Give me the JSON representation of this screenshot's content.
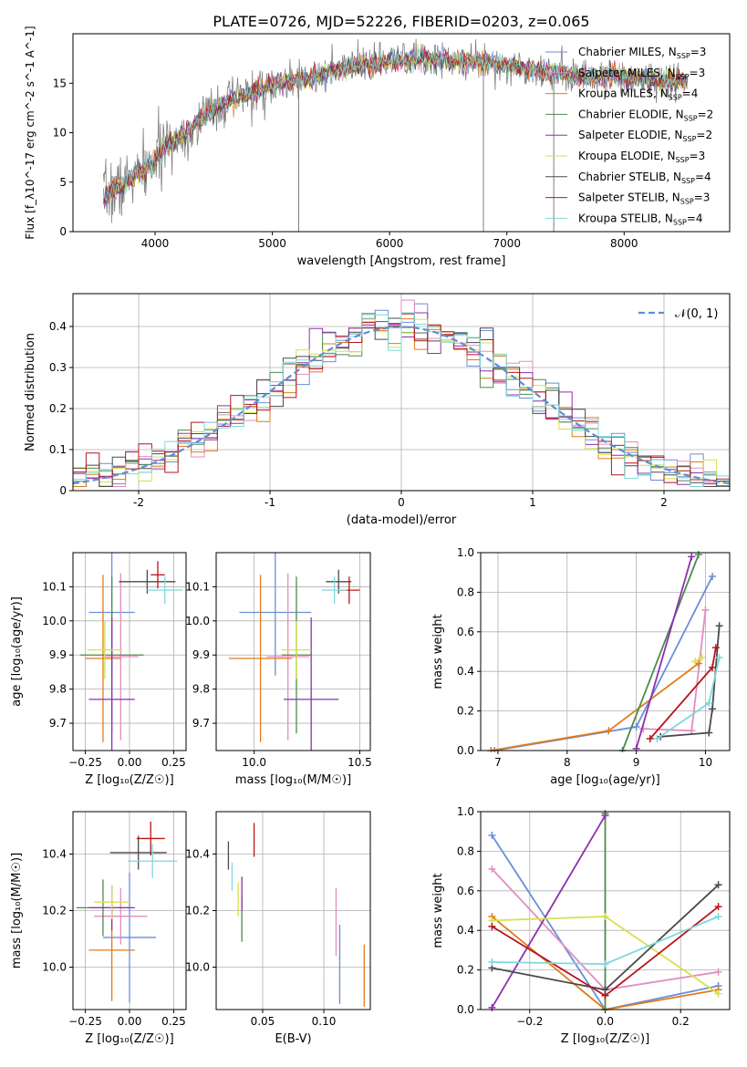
{
  "figure_title": "PLATE=0726, MJD=52226, FIBERID=0203, z=0.065",
  "colors": {
    "Chabrier MILES": "#6a8fd9",
    "Salpeter MILES": "#e38dbf",
    "Kroupa MILES": "#e07b1a",
    "Chabrier ELODIE": "#4e8a4e",
    "Salpeter ELODIE": "#8e2fb0",
    "Kroupa ELODIE": "#d8e04a",
    "Chabrier STELIB": "#4a4a4a",
    "Salpeter STELIB": "#b8141a",
    "Kroupa STELIB": "#7ed8dc",
    "data": "#7f7f7f",
    "gaussian": "#5b8fd6"
  },
  "chart_data": [
    {
      "id": "spectrum",
      "type": "line",
      "xlabel": "wavelength [Angstrom, rest frame]",
      "ylabel": "Flux [f_λ10^-17 erg cm^-2 s^-1 A^-1]",
      "xlim": [
        3300,
        8900
      ],
      "ylim": [
        0,
        20
      ],
      "xticks": [
        4000,
        5000,
        6000,
        7000,
        8000
      ],
      "yticks": [
        0,
        5,
        10,
        15
      ],
      "legend": "top-right",
      "legend_entries": [
        {
          "name": "Chabrier MILES",
          "nssp": "3"
        },
        {
          "name": "Salpeter MILES",
          "nssp": "3"
        },
        {
          "name": "Kroupa MILES",
          "nssp": "4"
        },
        {
          "name": "Chabrier ELODIE",
          "nssp": "2"
        },
        {
          "name": "Salpeter ELODIE",
          "nssp": "2"
        },
        {
          "name": "Kroupa ELODIE",
          "nssp": "3"
        },
        {
          "name": "Chabrier STELIB",
          "nssp": "4"
        },
        {
          "name": "Salpeter STELIB",
          "nssp": "3"
        },
        {
          "name": "Kroupa STELIB",
          "nssp": "4"
        }
      ],
      "continuum": [
        [
          3550,
          3.5
        ],
        [
          3700,
          4.5
        ],
        [
          3850,
          5.8
        ],
        [
          3950,
          6.6
        ],
        [
          4100,
          8.7
        ],
        [
          4300,
          10.3
        ],
        [
          4500,
          12.5
        ],
        [
          4700,
          13.5
        ],
        [
          4900,
          14.3
        ],
        [
          5100,
          15.0
        ],
        [
          5300,
          15.5
        ],
        [
          5500,
          16.2
        ],
        [
          5700,
          16.6
        ],
        [
          5900,
          17.0
        ],
        [
          6100,
          17.3
        ],
        [
          6300,
          17.4
        ],
        [
          6500,
          17.3
        ],
        [
          6700,
          17.2
        ],
        [
          6900,
          17.0
        ],
        [
          7100,
          16.6
        ],
        [
          7300,
          16.2
        ],
        [
          7500,
          16.0
        ],
        [
          7700,
          15.5
        ],
        [
          7900,
          15.7
        ],
        [
          8100,
          15.6
        ],
        [
          8300,
          15.3
        ],
        [
          8500,
          15.2
        ]
      ]
    },
    {
      "id": "histogram",
      "type": "bar",
      "xlabel": "(data-model)/error",
      "ylabel": "Normed distribution",
      "xlim": [
        -2.5,
        2.5
      ],
      "ylim": [
        0,
        0.48
      ],
      "xticks": [
        -2,
        -1,
        0,
        1,
        2
      ],
      "yticks": [
        0.0,
        0.1,
        0.2,
        0.3,
        0.4
      ],
      "grid": true,
      "legend": "top-right",
      "legend_entry": "𝒩(0, 1)",
      "bin_width": 0.1,
      "gaussian": {
        "mean": 0,
        "sigma": 1
      }
    },
    {
      "id": "age_vs_Z",
      "type": "scatter",
      "xlabel": "Z [log₁₀(Z/Z☉)]",
      "ylabel": "age  [log₁₀(age/yr)]",
      "xlim": [
        -0.32,
        0.32
      ],
      "ylim": [
        9.62,
        10.2
      ],
      "xticks": [
        -0.25,
        0.0,
        0.25
      ],
      "xticklabels": [
        "−0.25",
        "0.00",
        "0.25"
      ],
      "yticks": [
        9.7,
        9.8,
        9.9,
        10.0,
        10.1
      ],
      "yticklabels": [
        "9.7",
        "9.8",
        "9.9",
        "10.0",
        "10.1"
      ],
      "grid": true,
      "points": [
        {
          "model": "Chabrier MILES",
          "x": -0.1,
          "xerr": 0.13,
          "y": 10.025,
          "yerr": 0.185
        },
        {
          "model": "Salpeter MILES",
          "x": -0.05,
          "xerr": 0.1,
          "y": 9.895,
          "yerr": 0.245
        },
        {
          "model": "Kroupa MILES",
          "x": -0.15,
          "xerr": 0.1,
          "y": 9.89,
          "yerr": 0.245
        },
        {
          "model": "Chabrier ELODIE",
          "x": -0.1,
          "xerr": 0.18,
          "y": 9.9,
          "yerr": 0.23
        },
        {
          "model": "Salpeter ELODIE",
          "x": -0.1,
          "xerr": 0.13,
          "y": 9.77,
          "yerr": 0.24
        },
        {
          "model": "Kroupa ELODIE",
          "x": -0.14,
          "xerr": 0.1,
          "y": 9.915,
          "yerr": 0.085
        },
        {
          "model": "Chabrier STELIB",
          "x": 0.1,
          "xerr": 0.16,
          "y": 10.115,
          "yerr": 0.035
        },
        {
          "model": "Salpeter STELIB",
          "x": 0.16,
          "xerr": 0.04,
          "y": 10.135,
          "yerr": 0.04
        },
        {
          "model": "Kroupa STELIB",
          "x": 0.2,
          "xerr": 0.1,
          "y": 10.09,
          "yerr": 0.04
        }
      ]
    },
    {
      "id": "age_vs_mass",
      "type": "scatter",
      "xlabel": "mass [log₁₀(M/M☉)]",
      "ylabel": "",
      "xlim": [
        9.82,
        10.55
      ],
      "ylim": [
        9.62,
        10.2
      ],
      "xticks": [
        10.0,
        10.5
      ],
      "xticklabels": [
        "10.0",
        "10.5"
      ],
      "yticks": [
        9.7,
        9.8,
        9.9,
        10.0,
        10.1
      ],
      "yticklabels": [
        "9.7",
        "9.8",
        "9.9",
        "10.0",
        "10.1"
      ],
      "grid": true,
      "points": [
        {
          "model": "Chabrier MILES",
          "x": 10.1,
          "xerr": 0.17,
          "y": 10.025,
          "yerr": 0.185
        },
        {
          "model": "Salpeter MILES",
          "x": 10.16,
          "xerr": 0.1,
          "y": 9.895,
          "yerr": 0.245
        },
        {
          "model": "Kroupa MILES",
          "x": 10.03,
          "xerr": 0.15,
          "y": 9.89,
          "yerr": 0.245
        },
        {
          "model": "Chabrier ELODIE",
          "x": 10.2,
          "xerr": 0.07,
          "y": 9.9,
          "yerr": 0.23
        },
        {
          "model": "Salpeter ELODIE",
          "x": 10.27,
          "xerr": 0.13,
          "y": 9.77,
          "yerr": 0.24
        },
        {
          "model": "Kroupa ELODIE",
          "x": 10.2,
          "xerr": 0.07,
          "y": 9.915,
          "yerr": 0.085
        },
        {
          "model": "Chabrier STELIB",
          "x": 10.4,
          "xerr": 0.06,
          "y": 10.115,
          "yerr": 0.035
        },
        {
          "model": "Salpeter STELIB",
          "x": 10.45,
          "xerr": 0.05,
          "y": 10.09,
          "yerr": 0.04
        },
        {
          "model": "Kroupa STELIB",
          "x": 10.38,
          "xerr": 0.06,
          "y": 10.09,
          "yerr": 0.04
        }
      ]
    },
    {
      "id": "weight_vs_age",
      "type": "line",
      "xlabel": "age  [log₁₀(age/yr)]",
      "ylabel": "mass weight",
      "xlim": [
        6.75,
        10.35
      ],
      "ylim": [
        0,
        1.0
      ],
      "xticks": [
        7,
        8,
        9,
        10
      ],
      "xticklabels": [
        "7",
        "8",
        "9",
        "10"
      ],
      "yticks": [
        0.0,
        0.2,
        0.4,
        0.6,
        0.8,
        1.0
      ],
      "yticklabels": [
        "0.0",
        "0.2",
        "0.4",
        "0.6",
        "0.8",
        "1.0"
      ],
      "grid": true,
      "series": [
        {
          "model": "Chabrier MILES",
          "x": [
            6.95,
            9.0,
            10.1
          ],
          "y": [
            0.0,
            0.12,
            0.88
          ]
        },
        {
          "model": "Salpeter MILES",
          "x": [
            9.1,
            9.8,
            10.0
          ],
          "y": [
            0.11,
            0.1,
            0.71
          ]
        },
        {
          "model": "Kroupa MILES",
          "x": [
            6.9,
            8.6,
            9.9
          ],
          "y": [
            0.0,
            0.1,
            0.44
          ]
        },
        {
          "model": "Chabrier ELODIE",
          "x": [
            8.8,
            9.9
          ],
          "y": [
            0.0,
            0.99
          ]
        },
        {
          "model": "Salpeter ELODIE",
          "x": [
            9.0,
            9.8
          ],
          "y": [
            0.01,
            0.98
          ]
        },
        {
          "model": "Kroupa ELODIE",
          "x": [
            9.85,
            9.95
          ],
          "y": [
            0.45,
            0.47
          ]
        },
        {
          "model": "Chabrier STELIB",
          "x": [
            9.35,
            10.05,
            10.1,
            10.2
          ],
          "y": [
            0.07,
            0.09,
            0.21,
            0.63
          ]
        },
        {
          "model": "Salpeter STELIB",
          "x": [
            9.2,
            10.1,
            10.15
          ],
          "y": [
            0.06,
            0.42,
            0.52
          ]
        },
        {
          "model": "Kroupa STELIB",
          "x": [
            9.3,
            10.05,
            10.2
          ],
          "y": [
            0.06,
            0.24,
            0.47
          ]
        }
      ]
    },
    {
      "id": "mass_vs_Z",
      "type": "scatter",
      "xlabel": "Z [log₁₀(Z/Z☉)]",
      "ylabel": "mass [log₁₀(M/M☉)]",
      "xlim": [
        -0.32,
        0.32
      ],
      "ylim": [
        9.85,
        10.55
      ],
      "xticks": [
        -0.25,
        0.0,
        0.25
      ],
      "xticklabels": [
        "−0.25",
        "0.00",
        "0.25"
      ],
      "yticks": [
        10.0,
        10.2,
        10.4
      ],
      "yticklabels": [
        "10.0",
        "10.2",
        "10.4"
      ],
      "grid": true,
      "points": [
        {
          "model": "Chabrier MILES",
          "x": 0.0,
          "xerr": 0.15,
          "y": 10.105,
          "yerr": 0.23
        },
        {
          "model": "Salpeter MILES",
          "x": -0.05,
          "xerr": 0.15,
          "y": 10.18,
          "yerr": 0.1
        },
        {
          "model": "Kroupa MILES",
          "x": -0.1,
          "xerr": 0.13,
          "y": 10.06,
          "yerr": 0.18
        },
        {
          "model": "Chabrier ELODIE",
          "x": -0.15,
          "xerr": 0.15,
          "y": 10.21,
          "yerr": 0.1
        },
        {
          "model": "Salpeter ELODIE",
          "x": -0.1,
          "xerr": 0.13,
          "y": 10.21,
          "yerr": 0.08
        },
        {
          "model": "Kroupa ELODIE",
          "x": -0.1,
          "xerr": 0.1,
          "y": 10.23,
          "yerr": 0.06
        },
        {
          "model": "Chabrier STELIB",
          "x": 0.05,
          "xerr": 0.16,
          "y": 10.405,
          "yerr": 0.06
        },
        {
          "model": "Salpeter STELIB",
          "x": 0.12,
          "xerr": 0.08,
          "y": 10.455,
          "yerr": 0.06
        },
        {
          "model": "Kroupa STELIB",
          "x": 0.13,
          "xerr": 0.14,
          "y": 10.375,
          "yerr": 0.06
        }
      ]
    },
    {
      "id": "mass_vs_ebv",
      "type": "scatter",
      "xlabel": "E(B-V)",
      "ylabel": "",
      "xlim": [
        0.012,
        0.138
      ],
      "ylim": [
        9.85,
        10.55
      ],
      "xticks": [
        0.05,
        0.1
      ],
      "xticklabels": [
        "0.05",
        "0.10"
      ],
      "yticks": [
        10.0,
        10.2,
        10.4
      ],
      "yticklabels": [
        "10.0",
        "10.2",
        "10.4"
      ],
      "grid": true,
      "points": [
        {
          "model": "Chabrier MILES",
          "x": 0.113,
          "xerr": 0,
          "y": 10.01,
          "yerr": 0.14
        },
        {
          "model": "Salpeter MILES",
          "x": 0.11,
          "xerr": 0,
          "y": 10.16,
          "yerr": 0.12
        },
        {
          "model": "Kroupa MILES",
          "x": 0.133,
          "xerr": 0,
          "y": 9.97,
          "yerr": 0.11
        },
        {
          "model": "Chabrier ELODIE",
          "x": 0.033,
          "xerr": 0,
          "y": 10.17,
          "yerr": 0.08
        },
        {
          "model": "Salpeter ELODIE",
          "x": 0.033,
          "xerr": 0,
          "y": 10.26,
          "yerr": 0.06
        },
        {
          "model": "Kroupa ELODIE",
          "x": 0.03,
          "xerr": 0,
          "y": 10.24,
          "yerr": 0.06
        },
        {
          "model": "Chabrier STELIB",
          "x": 0.022,
          "xerr": 0,
          "y": 10.395,
          "yerr": 0.05
        },
        {
          "model": "Salpeter STELIB",
          "x": 0.043,
          "xerr": 0,
          "y": 10.45,
          "yerr": 0.06
        },
        {
          "model": "Kroupa STELIB",
          "x": 0.025,
          "xerr": 0,
          "y": 10.32,
          "yerr": 0.05
        }
      ]
    },
    {
      "id": "weight_vs_Z",
      "type": "line",
      "xlabel": "Z [log₁₀(Z/Z☉)]",
      "ylabel": "mass weight",
      "xlim": [
        -0.33,
        0.33
      ],
      "ylim": [
        0,
        1.0
      ],
      "xticks": [
        -0.2,
        0.0,
        0.2
      ],
      "xticklabels": [
        "−0.2",
        "0.0",
        "0.2"
      ],
      "yticks": [
        0.0,
        0.2,
        0.4,
        0.6,
        0.8,
        1.0
      ],
      "yticklabels": [
        "0.0",
        "0.2",
        "0.4",
        "0.6",
        "0.8",
        "1.0"
      ],
      "grid": true,
      "series": [
        {
          "model": "Chabrier MILES",
          "x": [
            -0.3,
            0.0,
            0.3
          ],
          "y": [
            0.88,
            0.0,
            0.12
          ]
        },
        {
          "model": "Salpeter MILES",
          "x": [
            -0.3,
            0.0,
            0.3
          ],
          "y": [
            0.71,
            0.1,
            0.19
          ]
        },
        {
          "model": "Kroupa MILES",
          "x": [
            -0.3,
            0.0,
            0.3
          ],
          "y": [
            0.47,
            0.0,
            0.1
          ]
        },
        {
          "model": "Chabrier ELODIE",
          "x": [
            0.0,
            0.0
          ],
          "y": [
            0.0,
            0.99
          ]
        },
        {
          "model": "Salpeter ELODIE",
          "x": [
            -0.3,
            0.0
          ],
          "y": [
            0.01,
            0.98
          ]
        },
        {
          "model": "Kroupa ELODIE",
          "x": [
            -0.3,
            0.0,
            0.3
          ],
          "y": [
            0.45,
            0.47,
            0.08
          ]
        },
        {
          "model": "Chabrier STELIB",
          "x": [
            -0.3,
            0.0,
            0.3
          ],
          "y": [
            0.21,
            0.1,
            0.63
          ]
        },
        {
          "model": "Salpeter STELIB",
          "x": [
            -0.3,
            0.0,
            0.3
          ],
          "y": [
            0.42,
            0.07,
            0.52
          ]
        },
        {
          "model": "Kroupa STELIB",
          "x": [
            -0.3,
            0.0,
            0.3
          ],
          "y": [
            0.24,
            0.23,
            0.47
          ]
        }
      ]
    }
  ]
}
